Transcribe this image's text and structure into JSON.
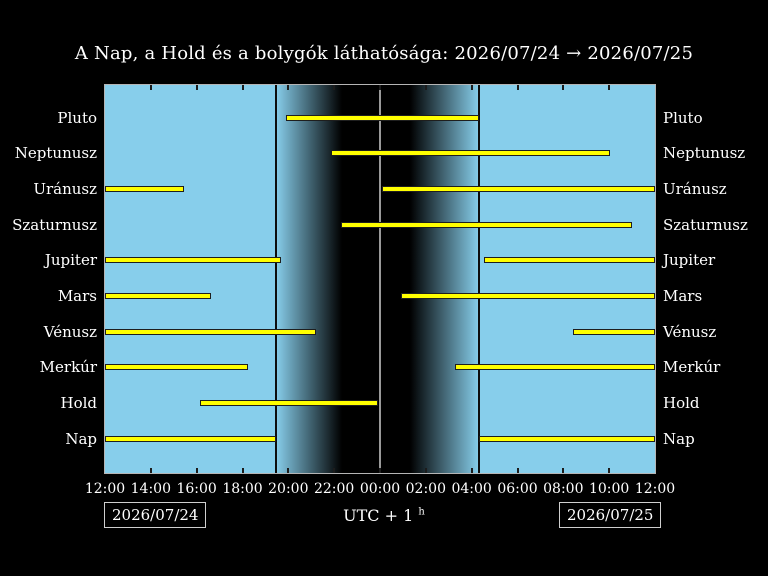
{
  "title": "A Nap, a Hold és a bolygók láthatósága: 2026/07/24 → 2026/07/25",
  "dates": {
    "start": "2026/07/24",
    "end": "2026/07/25"
  },
  "utc": {
    "text": "UTC + 1",
    "sup": "h"
  },
  "chart_data": {
    "type": "timeline-bars",
    "title": "A Nap, a Hold és a bolygók láthatósága: 2026/07/24 → 2026/07/25",
    "x_axis": {
      "tick_labels": [
        "12:00",
        "14:00",
        "16:00",
        "18:00",
        "20:00",
        "22:00",
        "00:00",
        "02:00",
        "04:00",
        "06:00",
        "08:00",
        "10:00",
        "12:00"
      ],
      "hours_total": 24,
      "tick_interval_hours": 2,
      "start_date": "2026/07/24",
      "end_date": "2026/07/25",
      "timezone_label": "UTC + 1h"
    },
    "rows": [
      {
        "label": "Pluto",
        "segments": [
          {
            "start_h": 7.9,
            "end_h": 16.3,
            "start": "19:54",
            "end": "04:18"
          }
        ]
      },
      {
        "label": "Neptunusz",
        "segments": [
          {
            "start_h": 9.86,
            "end_h": 22.04,
            "start": "21:52",
            "end": "10:02"
          }
        ]
      },
      {
        "label": "Uránusz",
        "segments": [
          {
            "start_h": 0.0,
            "end_h": 3.45,
            "start": "12:00",
            "end": "15:27"
          },
          {
            "start_h": 12.09,
            "end_h": 24.0,
            "start": "00:05",
            "end": "12:00"
          }
        ]
      },
      {
        "label": "Szaturnusz",
        "segments": [
          {
            "start_h": 10.3,
            "end_h": 23.0,
            "start": "22:18",
            "end": "11:00"
          }
        ]
      },
      {
        "label": "Jupiter",
        "segments": [
          {
            "start_h": 0.0,
            "end_h": 7.68,
            "start": "12:00",
            "end": "19:41"
          },
          {
            "start_h": 16.54,
            "end_h": 24.0,
            "start": "04:32",
            "end": "12:00"
          }
        ]
      },
      {
        "label": "Mars",
        "segments": [
          {
            "start_h": 0.0,
            "end_h": 4.63,
            "start": "12:00",
            "end": "16:38"
          },
          {
            "start_h": 12.92,
            "end_h": 24.0,
            "start": "00:55",
            "end": "12:00"
          }
        ]
      },
      {
        "label": "Vénusz",
        "segments": [
          {
            "start_h": 0.0,
            "end_h": 9.21,
            "start": "12:00",
            "end": "21:13"
          },
          {
            "start_h": 20.42,
            "end_h": 24.0,
            "start": "08:25",
            "end": "12:00"
          }
        ]
      },
      {
        "label": "Merkúr",
        "segments": [
          {
            "start_h": 0.0,
            "end_h": 6.24,
            "start": "12:00",
            "end": "18:14"
          },
          {
            "start_h": 15.27,
            "end_h": 24.0,
            "start": "03:16",
            "end": "12:00"
          }
        ]
      },
      {
        "label": "Hold",
        "segments": [
          {
            "start_h": 4.15,
            "end_h": 11.91,
            "start": "16:09",
            "end": "23:55"
          }
        ]
      },
      {
        "label": "Nap",
        "segments": [
          {
            "start_h": 0.0,
            "end_h": 7.46,
            "start": "12:00",
            "end": "19:28"
          },
          {
            "start_h": 16.32,
            "end_h": 24.0,
            "start": "04:19",
            "end": "12:00"
          }
        ]
      }
    ],
    "night": {
      "sunset_h": 7.46,
      "dark_start_h": 10.34,
      "dark_end_h": 13.31,
      "sunrise_h": 16.32,
      "midnight_h": 12.0,
      "sunset": "19:28",
      "sunrise": "04:19"
    },
    "colors": {
      "day": "#87ceeb",
      "night": "#000000",
      "bar_fill": "#ffff00",
      "bar_border": "#1e1e1e",
      "frame": "#b5b5b5",
      "label_text": "#ffffff",
      "midnight_line": "#9a9a9a",
      "sun_line": "#0d0d0d",
      "tick": "#1c1c1c"
    },
    "legend_position": "none",
    "grid": false
  }
}
